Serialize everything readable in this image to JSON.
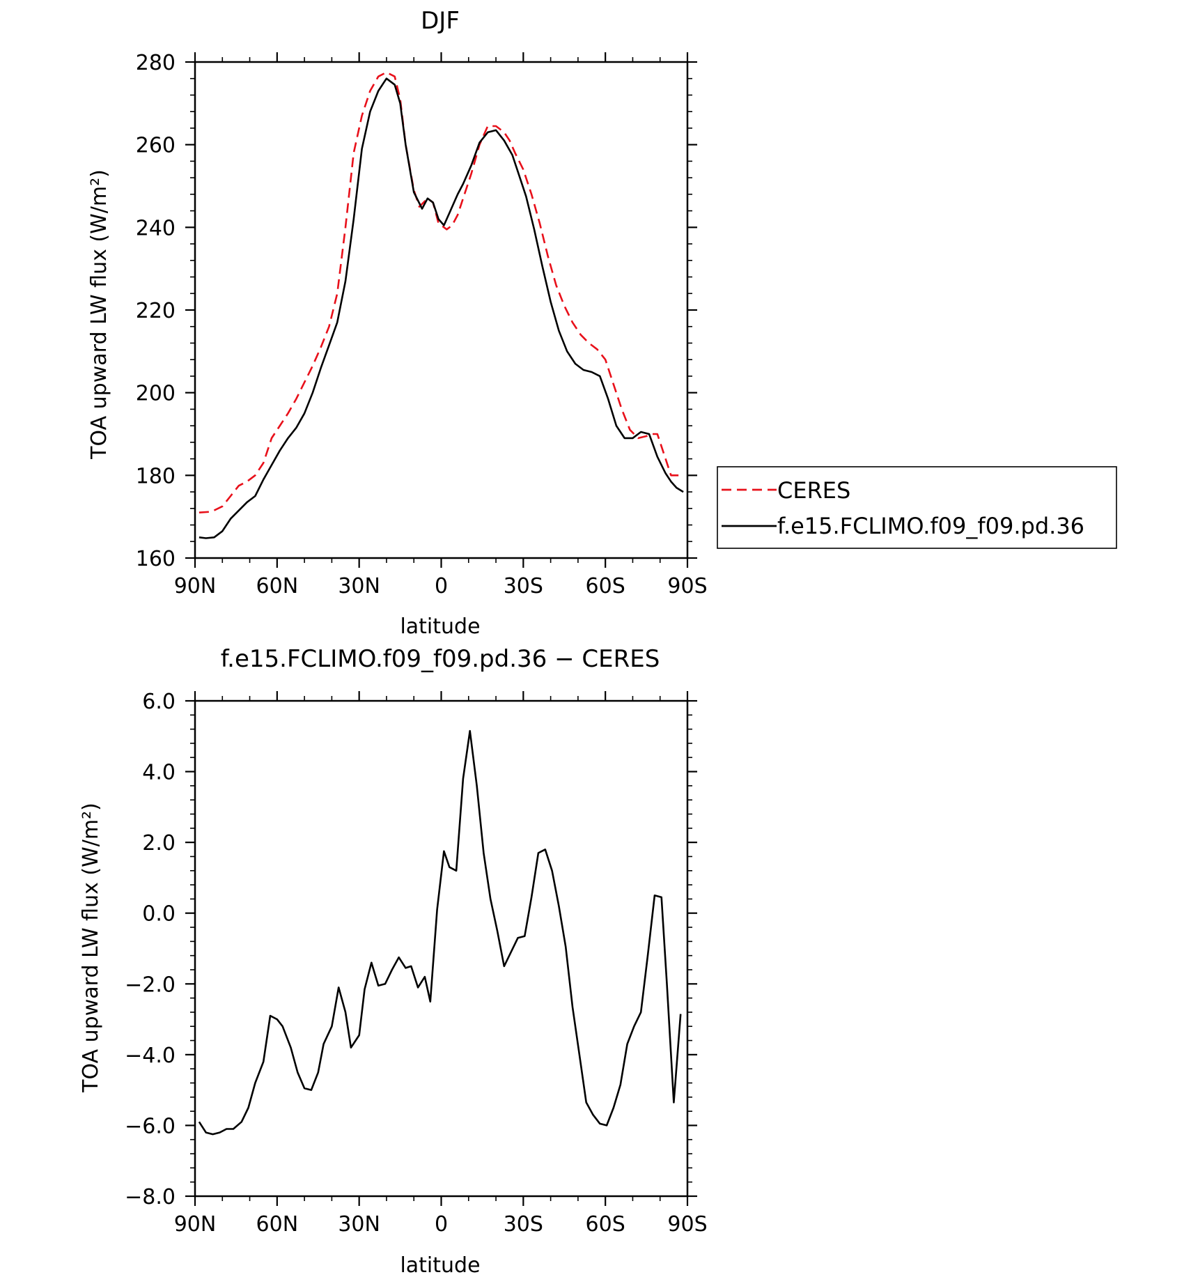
{
  "chart_data": [
    {
      "type": "line",
      "title": "DJF",
      "xlabel": "latitude",
      "ylabel": "TOA upward LW flux (W/m²)",
      "xlim": [
        90,
        -90
      ],
      "ylim": [
        160,
        280
      ],
      "x_ticks": [
        90,
        60,
        30,
        0,
        -30,
        -60,
        -90
      ],
      "x_tick_labels": [
        "90N",
        "60N",
        "30N",
        "0",
        "30S",
        "60S",
        "90S"
      ],
      "y_ticks": [
        160,
        180,
        200,
        220,
        240,
        260,
        280
      ],
      "y_tick_labels": [
        "160",
        "180",
        "200",
        "220",
        "240",
        "260",
        "280"
      ],
      "legend": "right",
      "series": [
        {
          "name": "CERES",
          "color": "#e8101a",
          "dash": "dashed",
          "x": [
            88.5,
            84,
            80,
            77,
            74,
            71,
            68,
            65,
            62,
            59,
            56,
            53,
            50,
            47,
            44,
            41,
            38,
            35,
            32,
            29,
            26,
            23,
            20,
            17,
            15,
            13,
            10,
            8,
            5,
            3,
            1,
            -2,
            -4,
            -6,
            -8,
            -11,
            -14,
            -17,
            -20,
            -23,
            -25,
            -27,
            -30,
            -33,
            -36,
            -39,
            -42,
            -45,
            -48,
            -51,
            -54,
            -57,
            -60,
            -63,
            -66,
            -69,
            -72,
            -75,
            -77,
            -79,
            -82,
            -84,
            -86,
            -88.5
          ],
          "values": [
            171,
            171.2,
            172.5,
            175,
            177.5,
            178.5,
            180,
            183,
            189,
            192,
            195,
            198.5,
            202.5,
            206.5,
            211,
            216,
            224,
            240,
            258,
            267,
            273,
            276.5,
            277.5,
            276.5,
            271,
            260,
            249,
            245,
            247,
            246,
            241,
            239.5,
            240.5,
            243,
            247,
            253,
            260,
            264.5,
            264.5,
            263,
            261,
            258,
            254,
            248,
            241,
            233,
            226,
            221,
            217,
            214,
            212,
            210.5,
            208,
            202,
            196,
            191,
            189,
            189.5,
            190,
            190,
            184,
            180,
            180,
            180
          ]
        },
        {
          "name": "f.e15.FCLIMO.f09_f09.pd.36",
          "color": "#000000",
          "dash": "solid",
          "x": [
            88.5,
            86,
            83,
            80,
            77,
            74,
            71,
            68,
            65,
            62,
            59,
            56,
            53,
            50,
            47,
            44,
            41,
            38,
            35,
            32,
            29,
            26,
            23,
            20,
            17,
            15,
            13,
            10,
            7,
            5,
            3,
            1,
            -1,
            -3,
            -6,
            -8,
            -11,
            -14,
            -17,
            -20,
            -23,
            -26,
            -28,
            -31,
            -34,
            -37,
            -40,
            -43,
            -46,
            -49,
            -52,
            -55,
            -58,
            -61,
            -64,
            -67,
            -70,
            -73,
            -76,
            -79,
            -82,
            -84,
            -86,
            -88.5
          ],
          "values": [
            165,
            164.8,
            165,
            166.5,
            169.5,
            171.5,
            173.5,
            175,
            179,
            182.5,
            186,
            189,
            191.5,
            195,
            200,
            206,
            211.5,
            217,
            227,
            242,
            259,
            268,
            273,
            276,
            274.5,
            270,
            260,
            248.5,
            244.5,
            247,
            246,
            242,
            240.5,
            243.5,
            248,
            250.5,
            255,
            260.5,
            263,
            263.5,
            261,
            257.5,
            253.5,
            247.5,
            239.5,
            230.5,
            222,
            215,
            210,
            207,
            205.5,
            205,
            204,
            198.5,
            192,
            189,
            189,
            190.5,
            190,
            184.5,
            180.5,
            178.5,
            177,
            176
          ]
        }
      ]
    },
    {
      "type": "line",
      "title": "f.e15.FCLIMO.f09_f09.pd.36 − CERES",
      "xlabel": "latitude",
      "ylabel": "TOA upward LW flux (W/m²)",
      "xlim": [
        90,
        -90
      ],
      "ylim": [
        -8,
        6
      ],
      "x_ticks": [
        90,
        60,
        30,
        0,
        -30,
        -60,
        -90
      ],
      "x_tick_labels": [
        "90N",
        "60N",
        "30N",
        "0",
        "30S",
        "60S",
        "90S"
      ],
      "y_ticks": [
        -8,
        -6,
        -4,
        -2,
        0,
        2,
        4,
        6
      ],
      "y_tick_labels": [
        "−8.0",
        "−6.0",
        "−4.0",
        "−2.0",
        "0.0",
        "2.0",
        "4.0",
        "6.0"
      ],
      "series": [
        {
          "color": "#000000",
          "dash": "solid",
          "x": [
            88.5,
            86,
            83.5,
            81,
            78.5,
            76,
            73,
            70.5,
            68,
            65,
            62.5,
            60,
            58,
            55,
            52.5,
            50,
            47.5,
            45,
            43,
            40,
            37.5,
            35,
            33,
            30,
            28,
            25.5,
            23,
            20.5,
            18,
            15.5,
            13,
            11,
            8.5,
            6,
            4,
            1.5,
            -1,
            -3,
            -5.5,
            -8,
            -10.5,
            -13,
            -15.5,
            -18,
            -20.5,
            -23,
            -25.5,
            -28,
            -30.5,
            -33,
            -35.5,
            -38,
            -40.5,
            -43,
            -45.5,
            -48,
            -50.5,
            -53,
            -55.5,
            -58,
            -60.5,
            -63,
            -65.5,
            -68,
            -70.5,
            -73,
            -75.5,
            -78,
            -80.5,
            -82.5,
            -85,
            -87.5
          ],
          "values": [
            -5.9,
            -6.2,
            -6.25,
            -6.2,
            -6.1,
            -6.1,
            -5.9,
            -5.5,
            -4.8,
            -4.2,
            -2.9,
            -3.0,
            -3.2,
            -3.8,
            -4.5,
            -4.95,
            -5.0,
            -4.5,
            -3.7,
            -3.2,
            -2.1,
            -2.8,
            -3.8,
            -3.45,
            -2.15,
            -1.4,
            -2.05,
            -2.0,
            -1.6,
            -1.25,
            -1.55,
            -1.5,
            -2.1,
            -1.8,
            -2.5,
            0.1,
            1.75,
            1.3,
            1.2,
            3.8,
            5.15,
            3.6,
            1.7,
            0.4,
            -0.5,
            -1.5,
            -1.1,
            -0.7,
            -0.65,
            0.45,
            1.7,
            1.8,
            1.2,
            0.2,
            -0.95,
            -2.65,
            -4.0,
            -5.35,
            -5.7,
            -5.95,
            -6.0,
            -5.5,
            -4.85,
            -3.7,
            -3.2,
            -2.8,
            -1.2,
            0.5,
            0.45,
            -2.0,
            -5.35,
            -2.85
          ]
        }
      ]
    }
  ]
}
